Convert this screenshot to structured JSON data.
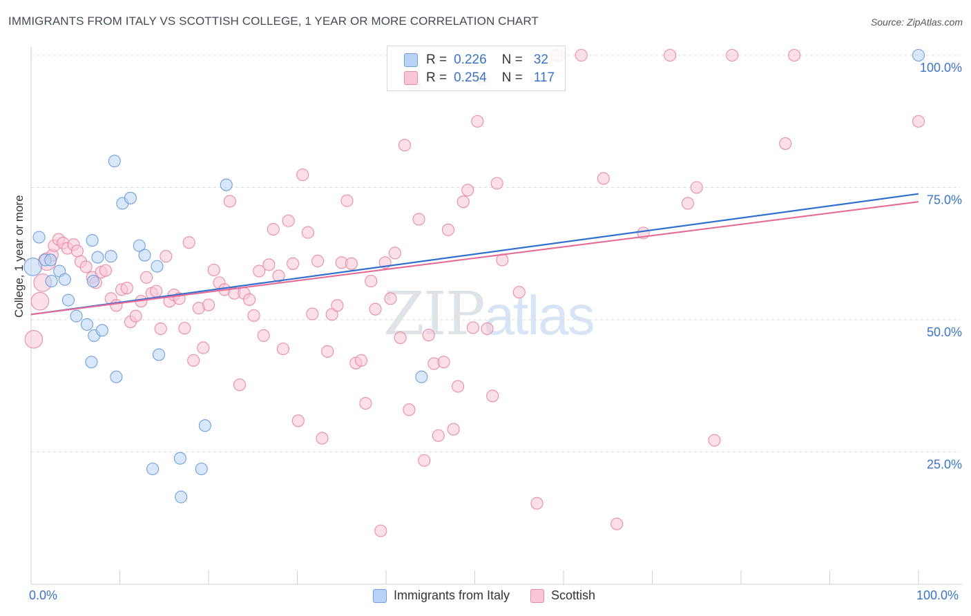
{
  "title": "IMMIGRANTS FROM ITALY VS SCOTTISH COLLEGE, 1 YEAR OR MORE CORRELATION CHART",
  "source": "Source: ZipAtlas.com",
  "watermark": {
    "zip": "ZIP",
    "atlas": "atlas"
  },
  "legend_top": [
    {
      "r_label": "R =",
      "r_value": "0.226",
      "n_label": "N =",
      "n_value": "32"
    },
    {
      "r_label": "R =",
      "r_value": "0.254",
      "n_label": "N =",
      "n_value": "117"
    }
  ],
  "colors": {
    "blue_fill": "#b8d3f5",
    "blue_stroke": "#6f9fdc",
    "blue_line": "#2f6fcf",
    "pink_fill": "#f9c6d6",
    "pink_stroke": "#e98aa9",
    "pink_line": "#e56b96",
    "tick_text": "#3a74c8",
    "grid": "#dcdcdc"
  },
  "chart_data": {
    "type": "scatter",
    "title": "IMMIGRANTS FROM ITALY VS SCOTTISH COLLEGE, 1 YEAR OR MORE CORRELATION CHART",
    "xlabel": "",
    "ylabel": "College, 1 year or more",
    "xlim": [
      0,
      100
    ],
    "ylim": [
      0,
      100
    ],
    "x_tick_labels": [
      "0.0%",
      "100.0%"
    ],
    "y_tick_labels": [
      "25.0%",
      "50.0%",
      "75.0%",
      "100.0%"
    ],
    "y_ticks": [
      25,
      50,
      75,
      100
    ],
    "grid": true,
    "legend_placement": "bottom",
    "series": [
      {
        "name": "Immigrants from Italy",
        "color": "blue",
        "trend": {
          "x": [
            0,
            100
          ],
          "y": [
            51.0,
            73.8
          ]
        },
        "points": [
          [
            0.2,
            60.0,
            1.5
          ],
          [
            0.9,
            65.6,
            1
          ],
          [
            1.6,
            61.3,
            1
          ],
          [
            2.2,
            61.3,
            1
          ],
          [
            2.3,
            57.3,
            1
          ],
          [
            3.2,
            59.2,
            1
          ],
          [
            3.8,
            57.6,
            1
          ],
          [
            4.2,
            53.7,
            1
          ],
          [
            5.1,
            50.7,
            1
          ],
          [
            6.3,
            49.1,
            1
          ],
          [
            6.9,
            65.0,
            1
          ],
          [
            7.0,
            57.3,
            1
          ],
          [
            7.1,
            47.0,
            1
          ],
          [
            6.8,
            42.0,
            1
          ],
          [
            7.5,
            61.8,
            1
          ],
          [
            8.0,
            48.0,
            1
          ],
          [
            9.0,
            62.0,
            1
          ],
          [
            9.4,
            80.0,
            1
          ],
          [
            9.6,
            39.2,
            1
          ],
          [
            10.3,
            72.0,
            1
          ],
          [
            11.2,
            73.0,
            1
          ],
          [
            12.2,
            64.0,
            1
          ],
          [
            12.8,
            62.2,
            1
          ],
          [
            13.7,
            21.8,
            1
          ],
          [
            14.2,
            60.1,
            1
          ],
          [
            14.4,
            43.4,
            1
          ],
          [
            16.8,
            23.8,
            1
          ],
          [
            16.9,
            16.5,
            1
          ],
          [
            19.2,
            21.8,
            1
          ],
          [
            19.6,
            30.0,
            1
          ],
          [
            22.0,
            75.5,
            1
          ],
          [
            44.0,
            39.2,
            1
          ],
          [
            100.0,
            100.0,
            1
          ]
        ]
      },
      {
        "name": "Scottish",
        "color": "pink",
        "trend": {
          "x": [
            0,
            100
          ],
          "y": [
            51.0,
            72.3
          ]
        },
        "points": [
          [
            0.3,
            46.3,
            1.5
          ],
          [
            1.0,
            53.5,
            1.5
          ],
          [
            1.3,
            57.0,
            1.5
          ],
          [
            1.8,
            61.0,
            1.5
          ],
          [
            2.4,
            62.2,
            1
          ],
          [
            2.6,
            64.0,
            1
          ],
          [
            3.1,
            65.2,
            1
          ],
          [
            3.6,
            64.5,
            1
          ],
          [
            4.1,
            63.5,
            1
          ],
          [
            4.8,
            64.2,
            1
          ],
          [
            5.2,
            63.0,
            1
          ],
          [
            5.6,
            61.0,
            1
          ],
          [
            6.2,
            60.0,
            1
          ],
          [
            6.9,
            58.0,
            1
          ],
          [
            7.3,
            57.0,
            1
          ],
          [
            7.9,
            59.0,
            1
          ],
          [
            8.4,
            59.3,
            1
          ],
          [
            9.0,
            54.0,
            1
          ],
          [
            9.6,
            52.7,
            1
          ],
          [
            10.2,
            55.7,
            1
          ],
          [
            10.8,
            56.0,
            1
          ],
          [
            11.2,
            49.6,
            1
          ],
          [
            11.8,
            50.7,
            1
          ],
          [
            12.4,
            53.5,
            1
          ],
          [
            13.0,
            58.0,
            1
          ],
          [
            13.6,
            55.0,
            1
          ],
          [
            14.1,
            55.4,
            1
          ],
          [
            14.6,
            48.3,
            1
          ],
          [
            15.2,
            62.0,
            1
          ],
          [
            15.6,
            53.5,
            1
          ],
          [
            16.1,
            54.7,
            1
          ],
          [
            16.7,
            54.0,
            1
          ],
          [
            17.3,
            48.4,
            1
          ],
          [
            17.8,
            64.6,
            1
          ],
          [
            18.3,
            42.3,
            1
          ],
          [
            18.9,
            52.2,
            1
          ],
          [
            19.4,
            44.7,
            1
          ],
          [
            20.0,
            52.8,
            1
          ],
          [
            20.6,
            59.4,
            1
          ],
          [
            21.2,
            57.0,
            1
          ],
          [
            21.8,
            55.7,
            1
          ],
          [
            22.4,
            72.4,
            1
          ],
          [
            22.9,
            55.0,
            1
          ],
          [
            23.5,
            37.7,
            1
          ],
          [
            24.0,
            55.0,
            1
          ],
          [
            24.6,
            53.8,
            1
          ],
          [
            25.1,
            50.8,
            1
          ],
          [
            25.7,
            59.2,
            1
          ],
          [
            26.2,
            47.0,
            1
          ],
          [
            26.8,
            60.4,
            1
          ],
          [
            27.3,
            67.1,
            1
          ],
          [
            27.9,
            58.3,
            1
          ],
          [
            28.4,
            44.5,
            1
          ],
          [
            29.0,
            68.7,
            1
          ],
          [
            29.5,
            60.6,
            1
          ],
          [
            30.1,
            30.9,
            1
          ],
          [
            30.6,
            77.4,
            1
          ],
          [
            31.2,
            66.5,
            1
          ],
          [
            31.7,
            51.1,
            1
          ],
          [
            32.3,
            61.1,
            1
          ],
          [
            32.8,
            27.6,
            1
          ],
          [
            33.4,
            44.0,
            1
          ],
          [
            33.9,
            51.0,
            1
          ],
          [
            34.5,
            52.7,
            1
          ],
          [
            35.0,
            60.8,
            1
          ],
          [
            35.6,
            72.5,
            1
          ],
          [
            36.1,
            60.6,
            1
          ],
          [
            36.6,
            41.8,
            1
          ],
          [
            37.2,
            42.3,
            1
          ],
          [
            37.7,
            34.2,
            1
          ],
          [
            38.3,
            57.3,
            1
          ],
          [
            38.8,
            52.0,
            1
          ],
          [
            39.4,
            10.1,
            1
          ],
          [
            39.9,
            60.8,
            1
          ],
          [
            40.5,
            54.0,
            1
          ],
          [
            41.0,
            62.6,
            1
          ],
          [
            41.6,
            46.6,
            1
          ],
          [
            42.1,
            83.0,
            1
          ],
          [
            42.6,
            33.0,
            1
          ],
          [
            43.2,
            94.5,
            1
          ],
          [
            43.7,
            69.0,
            1
          ],
          [
            44.3,
            23.4,
            1
          ],
          [
            44.8,
            47.1,
            1
          ],
          [
            45.4,
            41.7,
            1
          ],
          [
            45.9,
            28.1,
            1
          ],
          [
            46.5,
            42.0,
            1
          ],
          [
            47.0,
            67.0,
            1
          ],
          [
            47.6,
            29.3,
            1
          ],
          [
            48.1,
            37.4,
            1
          ],
          [
            48.7,
            72.3,
            1
          ],
          [
            49.2,
            74.5,
            1
          ],
          [
            49.8,
            48.5,
            1
          ],
          [
            50.3,
            87.5,
            1
          ],
          [
            50.9,
            95.5,
            1
          ],
          [
            51.4,
            48.3,
            1
          ],
          [
            52.0,
            35.6,
            1
          ],
          [
            52.5,
            75.8,
            1
          ],
          [
            53.1,
            61.3,
            1
          ],
          [
            55.0,
            55.2,
            1
          ],
          [
            57.0,
            15.3,
            1
          ],
          [
            59.5,
            100.0,
            1
          ],
          [
            62.0,
            100.0,
            1
          ],
          [
            64.5,
            76.7,
            1
          ],
          [
            66.0,
            11.4,
            1
          ],
          [
            69.0,
            66.4,
            1
          ],
          [
            72.0,
            100.0,
            1
          ],
          [
            74.0,
            72.0,
            1
          ],
          [
            75.0,
            75.0,
            1
          ],
          [
            77.0,
            27.2,
            1
          ],
          [
            79.0,
            100.0,
            1
          ],
          [
            85.0,
            83.3,
            1
          ],
          [
            86.0,
            100.0,
            1
          ],
          [
            100.0,
            87.5,
            1
          ],
          [
            59.2,
            100.0,
            1
          ]
        ]
      }
    ]
  }
}
